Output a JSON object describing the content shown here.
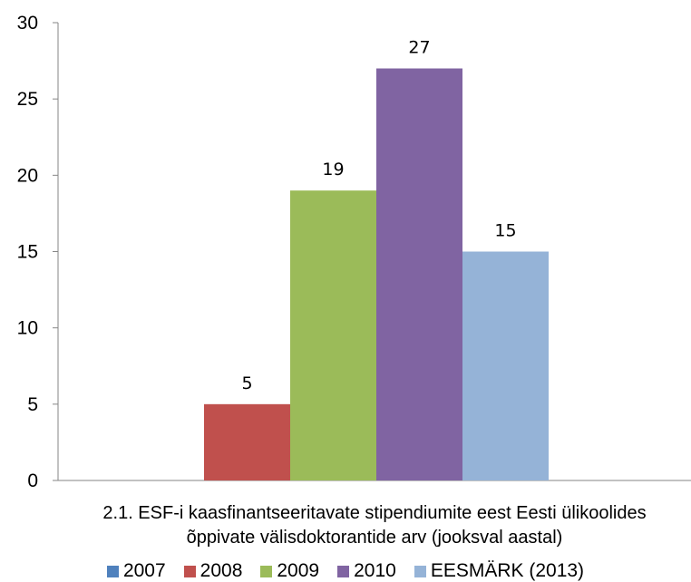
{
  "chart_data": {
    "type": "bar",
    "categories": [
      "2.1. ESF-i kaasfinantseeritavate stipendiumite eest Eesti ülikoolides õppivate välisdoktorantide arv (jooksval aastal)"
    ],
    "category_lines": [
      "2.1. ESF-i kaasfinantseeritavate stipendiumite eest Eesti ülikoolides",
      "õppivate välisdoktorantide arv (jooksval aastal)"
    ],
    "series": [
      {
        "name": "2007",
        "values": [
          null
        ],
        "label": "",
        "color": "#4f81bd"
      },
      {
        "name": "2008",
        "values": [
          5
        ],
        "label": "5",
        "color": "#c0504d"
      },
      {
        "name": "2009",
        "values": [
          19
        ],
        "label": "19",
        "color": "#9bbb59"
      },
      {
        "name": "2010",
        "values": [
          27
        ],
        "label": "27",
        "color": "#8064a2"
      },
      {
        "name": "EESMÄRK (2013)",
        "values": [
          15
        ],
        "label": "15",
        "color": "#95b3d7"
      }
    ],
    "ylim": [
      0,
      30
    ],
    "yticks": [
      "0",
      "5",
      "10",
      "15",
      "20",
      "25",
      "30"
    ],
    "grid": false,
    "legend": "bottom",
    "title": "",
    "xlabel": "",
    "ylabel": ""
  }
}
